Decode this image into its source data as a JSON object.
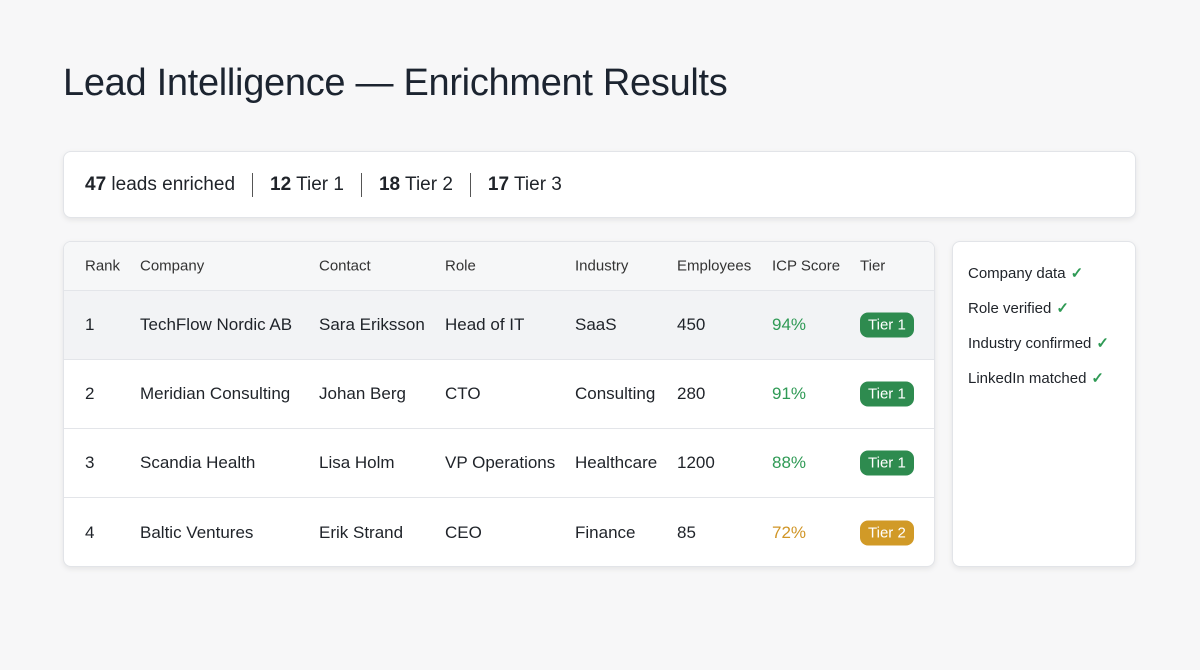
{
  "title": "Lead Intelligence — Enrichment Results",
  "stats": [
    {
      "num": "47",
      "label": "leads enriched"
    },
    {
      "num": "12",
      "label": "Tier 1"
    },
    {
      "num": "18",
      "label": "Tier 2"
    },
    {
      "num": "17",
      "label": "Tier 3"
    }
  ],
  "table": {
    "headers": [
      "Rank",
      "Company",
      "Contact",
      "Role",
      "Industry",
      "Employees",
      "ICP Score",
      "Tier"
    ],
    "rows": [
      {
        "rank": "1",
        "company": "TechFlow Nordic AB",
        "contact": "Sara Eriksson",
        "role": "Head of IT",
        "industry": "SaaS",
        "employees": "450",
        "score": "94%",
        "tier": "Tier 1"
      },
      {
        "rank": "2",
        "company": "Meridian Consulting",
        "contact": "Johan Berg",
        "role": "CTO",
        "industry": "Consulting",
        "employees": "280",
        "score": "91%",
        "tier": "Tier 1"
      },
      {
        "rank": "3",
        "company": "Scandia Health",
        "contact": "Lisa Holm",
        "role": "VP Operations",
        "industry": "Healthcare",
        "employees": "1200",
        "score": "88%",
        "tier": "Tier 1"
      },
      {
        "rank": "4",
        "company": "Baltic Ventures",
        "contact": "Erik Strand",
        "role": "CEO",
        "industry": "Finance",
        "employees": "85",
        "score": "72%",
        "tier": "Tier 2"
      }
    ]
  },
  "checks": [
    "Company data",
    "Role verified",
    "Industry confirmed",
    "LinkedIn matched"
  ],
  "check_glyph": "✓",
  "colors": {
    "tier1": "#2e8b4f",
    "tier2": "#d19a27",
    "score_green": "#2f9a55",
    "score_amber": "#d09526"
  }
}
